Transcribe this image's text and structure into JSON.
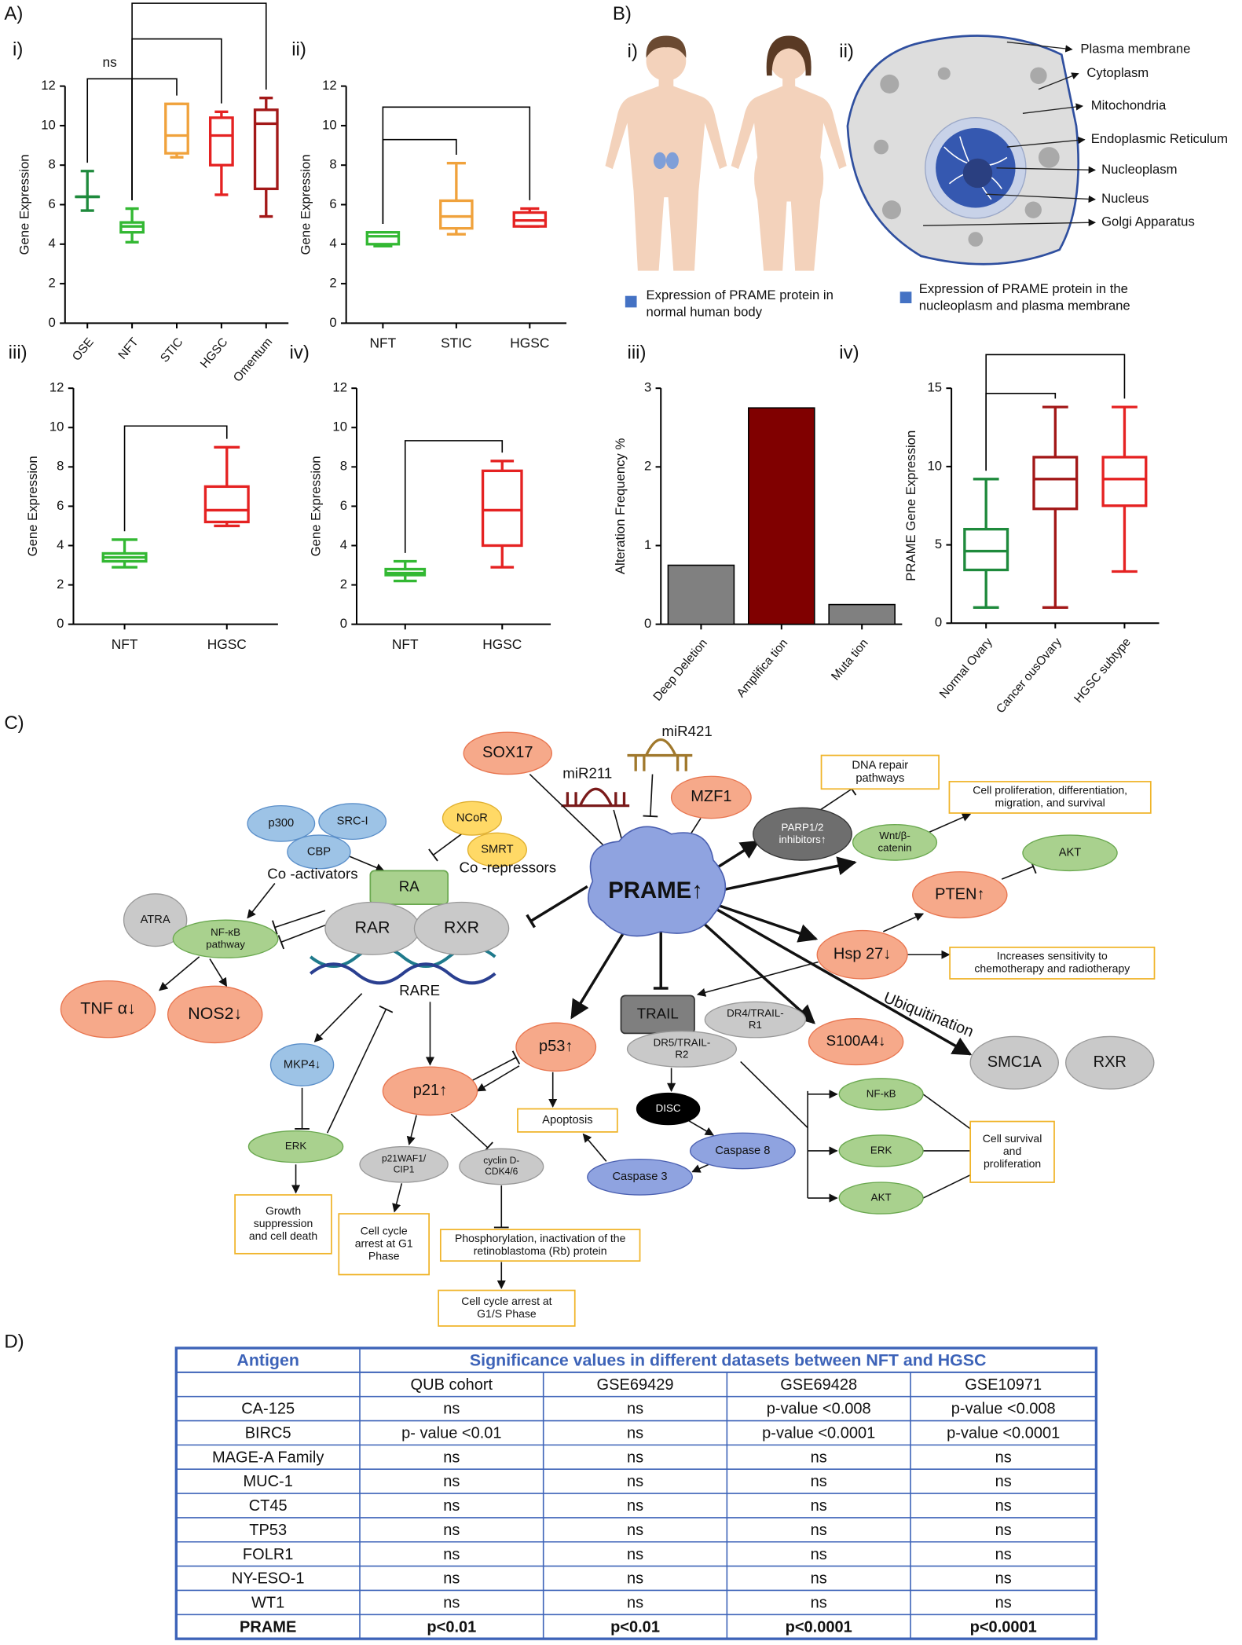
{
  "panel_labels": [
    "A)",
    "B)",
    "C)",
    "D)"
  ],
  "chart_data": [
    {
      "type": "box",
      "panel": "i)",
      "ylabel": "Gene Expression",
      "categories": [
        "OSE",
        "NFT",
        "STIC",
        "HGSC",
        "Omentum"
      ],
      "boxes": [
        {
          "min": 5.7,
          "q1": 6.4,
          "median": 6.4,
          "q3": 6.4,
          "max": 7.7,
          "color": "#1e8a3c"
        },
        {
          "min": 4.1,
          "q1": 4.6,
          "median": 4.9,
          "q3": 5.1,
          "max": 5.8,
          "color": "#33b833"
        },
        {
          "min": 8.4,
          "q1": 8.6,
          "median": 9.5,
          "q3": 11.1,
          "max": 11.1,
          "color": "#f0a23c"
        },
        {
          "min": 6.5,
          "q1": 8.0,
          "median": 9.5,
          "q3": 10.4,
          "max": 10.7,
          "color": "#e52222"
        },
        {
          "min": 5.4,
          "q1": 6.8,
          "median": 10.1,
          "q3": 10.8,
          "max": 11.4,
          "color": "#a31818"
        }
      ],
      "ylim": [
        0,
        12
      ],
      "yticks": [
        0,
        2,
        4,
        6,
        8,
        10,
        12
      ],
      "annotations": [
        "ns"
      ]
    },
    {
      "type": "box",
      "panel": "ii)",
      "ylabel": "Gene Expression",
      "categories": [
        "NFT",
        "STIC",
        "HGSC"
      ],
      "boxes": [
        {
          "min": 3.9,
          "q1": 4.0,
          "median": 4.4,
          "q3": 4.6,
          "max": 4.6,
          "color": "#33b833"
        },
        {
          "min": 4.5,
          "q1": 4.8,
          "median": 5.4,
          "q3": 6.2,
          "max": 8.1,
          "color": "#f0a23c"
        },
        {
          "min": 4.9,
          "q1": 4.9,
          "median": 5.2,
          "q3": 5.6,
          "max": 5.8,
          "color": "#e52222"
        }
      ],
      "ylim": [
        0,
        12
      ],
      "yticks": [
        0,
        2,
        4,
        6,
        8,
        10,
        12
      ]
    },
    {
      "type": "box",
      "panel": "iii)",
      "ylabel": "Gene Expression",
      "categories": [
        "NFT",
        "HGSC"
      ],
      "boxes": [
        {
          "min": 2.9,
          "q1": 3.2,
          "median": 3.4,
          "q3": 3.6,
          "max": 4.3,
          "color": "#33b833"
        },
        {
          "min": 5.0,
          "q1": 5.2,
          "median": 5.8,
          "q3": 7.0,
          "max": 9.0,
          "color": "#e52222"
        }
      ],
      "ylim": [
        0,
        12
      ],
      "yticks": [
        0,
        2,
        4,
        6,
        8,
        10,
        12
      ]
    },
    {
      "type": "box",
      "panel": "iv)",
      "ylabel": "Gene Expression",
      "categories": [
        "NFT",
        "HGSC"
      ],
      "boxes": [
        {
          "min": 2.2,
          "q1": 2.5,
          "median": 2.6,
          "q3": 2.8,
          "max": 3.2,
          "color": "#33b833"
        },
        {
          "min": 2.9,
          "q1": 4.0,
          "median": 5.8,
          "q3": 7.8,
          "max": 8.3,
          "color": "#e52222"
        }
      ],
      "ylim": [
        0,
        12
      ],
      "yticks": [
        0,
        2,
        4,
        6,
        8,
        10,
        12
      ]
    },
    {
      "type": "bar",
      "panel": "iii)",
      "ylabel": "Alteration Frequency %",
      "categories": [
        "Deep Deletion",
        "Amplifica tion",
        "Muta tion"
      ],
      "values": [
        0.75,
        2.75,
        0.25
      ],
      "colors": [
        "#808080",
        "#800000",
        "#808080"
      ],
      "ylim": [
        0,
        3
      ],
      "yticks": [
        0,
        1,
        2,
        3
      ]
    },
    {
      "type": "box",
      "panel": "iv)",
      "ylabel": "PRAME Gene Expression",
      "categories": [
        "Normal Ovary",
        "Cancer ousOvary",
        "HGSC subtype"
      ],
      "boxes": [
        {
          "min": 1.0,
          "q1": 3.4,
          "median": 4.6,
          "q3": 6.0,
          "max": 9.2,
          "color": "#1e8a3c"
        },
        {
          "min": 1.0,
          "q1": 7.3,
          "median": 9.2,
          "q3": 10.6,
          "max": 13.8,
          "color": "#a31818"
        },
        {
          "min": 3.3,
          "q1": 7.5,
          "median": 9.2,
          "q3": 10.6,
          "max": 13.8,
          "color": "#e52222"
        }
      ],
      "ylim": [
        0,
        15
      ],
      "yticks": [
        0,
        5,
        10,
        15
      ]
    }
  ],
  "body_figure": {
    "panel": "i)",
    "legend": [
      "Expression of PRAME protein in",
      "normal human body"
    ]
  },
  "cell_figure": {
    "panel": "ii)",
    "legend": [
      "Expression of PRAME protein in the",
      "nucleoplasm and plasma membrane"
    ],
    "labels": [
      "Plasma membrane",
      "Cytoplasm",
      "Mitochondria",
      "Endoplasmic Reticulum",
      "Nucleoplasm",
      "Nucleus",
      "Golgi Apparatus"
    ]
  },
  "diagram": {
    "nodes": [
      "SOX17",
      "miR421",
      "miR211",
      "MZF1",
      "p300",
      "SRC-I",
      "CBP",
      "NCoR",
      "SMRT",
      "Co -activators",
      "Co -repressors",
      "RA",
      "RAR",
      "RXR",
      "ATRA",
      [
        "NF-κB",
        "pathway"
      ],
      "RARE",
      "TNF α↓",
      "NOS2↓",
      "PRAME↑",
      [
        "DNA repair",
        "pathways"
      ],
      [
        "PARP1/2",
        "inhibitors↑"
      ],
      [
        "Cell proliferation, differentiation,",
        "migration, and survival"
      ],
      [
        "Wnt/β-",
        "catenin"
      ],
      "AKT",
      "PTEN↑",
      "Hsp 27↓",
      [
        "Increases sensitivity to",
        "chemotherapy and radiotherapy"
      ],
      "Ubiquitination",
      "SMC1A",
      "RXR",
      "S100A4↓",
      "TRAIL",
      [
        "DR4/TRAIL-",
        "R1"
      ],
      [
        "DR5/TRAIL-",
        "R2"
      ],
      "DISC",
      "Caspase 8",
      "Caspase 3",
      "Apoptosis",
      "p53↑",
      "p21↑",
      "MKP4↓",
      "ERK",
      [
        "Growth",
        "suppression",
        "and cell death"
      ],
      [
        "p21WAF1/",
        "CIP1"
      ],
      [
        "Cell cycle",
        "arrest at G1",
        "Phase"
      ],
      [
        "cyclin D-",
        "CDK4/6"
      ],
      [
        "Phosphorylation, inactivation of the",
        "retinoblastoma (Rb) protein"
      ],
      [
        "Cell cycle arrest at",
        "G1/S Phase"
      ],
      "NF-κB",
      "ERK",
      "AKT",
      [
        "Cell survival",
        "and",
        "proliferation"
      ]
    ]
  },
  "table": {
    "header": [
      "Antigen",
      "Significance values in different datasets between NFT and HGSC"
    ],
    "subheader": [
      "QUB cohort",
      "GSE69429",
      "GSE69428",
      "GSE10971"
    ],
    "rows": [
      [
        "CA-125",
        "ns",
        "ns",
        "p-value <0.008",
        "p-value <0.008"
      ],
      [
        "BIRC5",
        "p- value <0.01",
        "ns",
        "p-value <0.0001",
        "p-value <0.0001"
      ],
      [
        "MAGE-A Family",
        "ns",
        "ns",
        "ns",
        "ns"
      ],
      [
        "MUC-1",
        "ns",
        "ns",
        "ns",
        "ns"
      ],
      [
        "CT45",
        "ns",
        "ns",
        "ns",
        "ns"
      ],
      [
        "TP53",
        "ns",
        "ns",
        "ns",
        "ns"
      ],
      [
        "FOLR1",
        "ns",
        "ns",
        "ns",
        "ns"
      ],
      [
        "NY-ESO-1",
        "ns",
        "ns",
        "ns",
        "ns"
      ],
      [
        "WT1",
        "ns",
        "ns",
        "ns",
        "ns"
      ],
      [
        "PRAME",
        "p<0.01",
        "p<0.01",
        "p<0.0001",
        "p<0.0001"
      ]
    ]
  }
}
